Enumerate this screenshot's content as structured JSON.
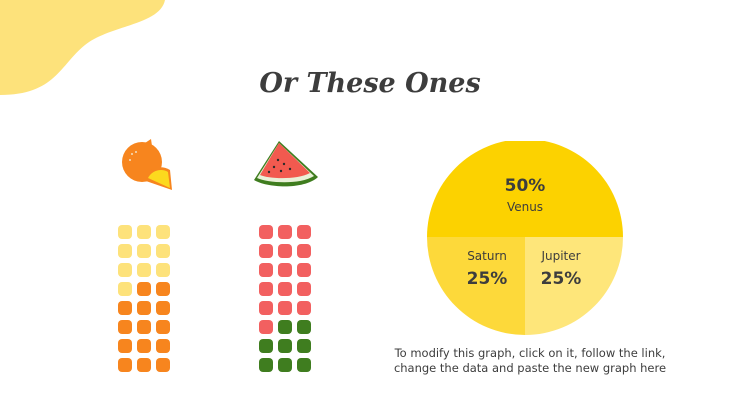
{
  "title": "Or These Ones",
  "colors": {
    "yellow_light": "#FDE27B",
    "yellow_mid": "#FCD91E",
    "orange": "#F7851E",
    "red": "#F26060",
    "green": "#3F7D1F",
    "blob": "#FDE27B"
  },
  "fruits": [
    {
      "name": "orange-icon",
      "grid": {
        "columns": 3,
        "rows": 8,
        "filled_top_color": "yellow_light",
        "top_cells": 10,
        "bottom_color": "orange",
        "bottom_cells": 14
      }
    },
    {
      "name": "watermelon-icon",
      "grid": {
        "columns": 3,
        "rows": 8,
        "top_color": "red",
        "top_cells": 16,
        "bottom_color": "green",
        "bottom_cells": 8
      }
    }
  ],
  "chart_data": {
    "type": "pie",
    "slices": [
      {
        "label": "Venus",
        "value": 50,
        "display": "50%",
        "color": "#FCD200"
      },
      {
        "label": "Saturn",
        "value": 25,
        "display": "25%",
        "color": "#FDD93A"
      },
      {
        "label": "Jupiter",
        "value": 25,
        "display": "25%",
        "color": "#FEE67A"
      }
    ]
  },
  "note": {
    "line1": "To modify this graph, click on it, follow the link,",
    "line2": "change the data and paste the new graph here"
  }
}
